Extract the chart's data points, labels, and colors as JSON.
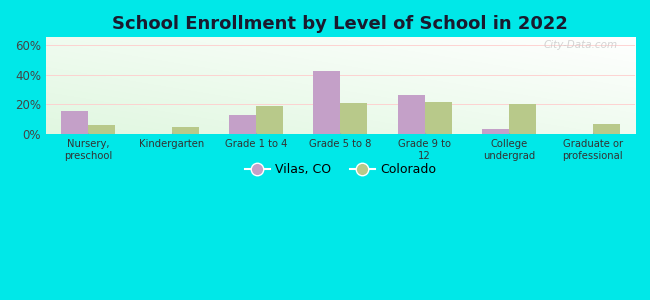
{
  "title": "School Enrollment by Level of School in 2022",
  "categories": [
    "Nursery,\npreschool",
    "Kindergarten",
    "Grade 1 to 4",
    "Grade 5 to 8",
    "Grade 9 to\n12",
    "College\nundergrad",
    "Graduate or\nprofessional"
  ],
  "vilas_values": [
    15.5,
    0,
    13,
    42.5,
    26.5,
    3.5,
    0
  ],
  "colorado_values": [
    6.5,
    5,
    19,
    21,
    21.5,
    20.5,
    7
  ],
  "vilas_color": "#c4a0c8",
  "colorado_color": "#b8c98a",
  "ylim": [
    0,
    65
  ],
  "yticks": [
    0,
    20,
    40,
    60
  ],
  "ytick_labels": [
    "0%",
    "20%",
    "40%",
    "60%"
  ],
  "background_outer": "#00e8e8",
  "legend_labels": [
    "Vilas, CO",
    "Colorado"
  ],
  "watermark": "City-Data.com",
  "bar_width": 0.32,
  "title_fontsize": 13
}
